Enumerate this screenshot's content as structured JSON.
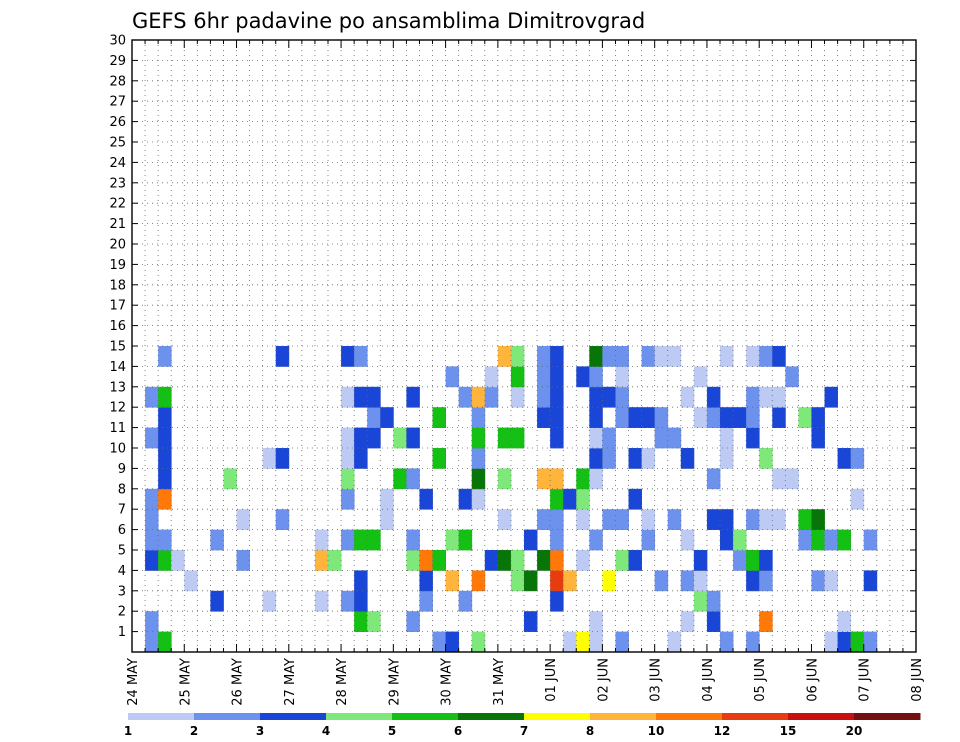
{
  "chart_data": {
    "type": "heatmap",
    "title": "GEFS 6hr padavine po ansamblima Dimitrovgrad",
    "xlabel": "",
    "ylabel": "",
    "x_tick_labels": [
      "24 MAY",
      "25 MAY",
      "26 MAY",
      "27 MAY",
      "28 MAY",
      "29 MAY",
      "30 MAY",
      "31 MAY",
      "01 JUN",
      "02 JUN",
      "03 JUN",
      "04 JUN",
      "05 JUN",
      "06 JUN",
      "07 JUN",
      "08 JUN"
    ],
    "y_tick_labels": [
      "1",
      "2",
      "3",
      "4",
      "5",
      "6",
      "7",
      "8",
      "9",
      "10",
      "11",
      "12",
      "13",
      "14",
      "15",
      "16",
      "17",
      "18",
      "19",
      "20",
      "21",
      "22",
      "23",
      "24",
      "25",
      "26",
      "27",
      "28",
      "29",
      "30"
    ],
    "ylim": [
      0,
      30
    ],
    "n_time_steps": 60,
    "grid": true,
    "legend": {
      "placement": "bottom",
      "labels": [
        "1",
        "2",
        "3",
        "4",
        "5",
        "6",
        "7",
        "8",
        "10",
        "12",
        "15",
        "20"
      ],
      "colors": [
        "#bccaf4",
        "#6c92ee",
        "#1a46d8",
        "#7fe87a",
        "#14c014",
        "#087508",
        "#ffff00",
        "#ffb43c",
        "#ff7808",
        "#e63c10",
        "#c81010",
        "#741010"
      ]
    },
    "series": [
      {
        "ensemble": 1,
        "cells": [
          [
            1,
            2
          ],
          [
            2,
            5
          ],
          [
            23,
            2
          ],
          [
            24,
            3
          ],
          [
            26,
            4
          ],
          [
            33,
            1
          ],
          [
            34,
            7
          ],
          [
            35,
            1
          ],
          [
            37,
            2
          ],
          [
            41,
            1
          ],
          [
            45,
            2
          ],
          [
            47,
            2
          ],
          [
            53,
            1
          ],
          [
            54,
            3
          ],
          [
            55,
            5
          ],
          [
            56,
            2
          ]
        ]
      },
      {
        "ensemble": 2,
        "cells": [
          [
            1,
            2
          ],
          [
            17,
            5
          ],
          [
            18,
            4
          ],
          [
            21,
            2
          ],
          [
            30,
            3
          ],
          [
            35,
            1
          ],
          [
            42,
            1
          ],
          [
            44,
            3
          ],
          [
            48,
            9
          ],
          [
            54,
            1
          ]
        ]
      },
      {
        "ensemble": 3,
        "cells": [
          [
            6,
            3
          ],
          [
            10,
            1
          ],
          [
            14,
            1
          ],
          [
            16,
            2
          ],
          [
            17,
            3
          ],
          [
            22,
            2
          ],
          [
            25,
            2
          ],
          [
            32,
            3
          ],
          [
            43,
            4
          ],
          [
            44,
            2
          ]
        ]
      },
      {
        "ensemble": 4,
        "cells": [
          [
            4,
            1
          ],
          [
            17,
            3
          ],
          [
            22,
            3
          ],
          [
            24,
            8
          ],
          [
            26,
            9
          ],
          [
            29,
            4
          ],
          [
            30,
            6
          ],
          [
            32,
            10
          ],
          [
            33,
            8
          ],
          [
            36,
            7
          ],
          [
            40,
            2
          ],
          [
            42,
            2
          ],
          [
            43,
            1
          ],
          [
            47,
            3
          ],
          [
            48,
            2
          ],
          [
            52,
            2
          ],
          [
            53,
            1
          ],
          [
            56,
            3
          ]
        ]
      },
      {
        "ensemble": 5,
        "cells": [
          [
            1,
            3
          ],
          [
            2,
            5
          ],
          [
            3,
            1
          ],
          [
            8,
            2
          ],
          [
            14,
            8
          ],
          [
            15,
            4
          ],
          [
            21,
            4
          ],
          [
            22,
            9
          ],
          [
            23,
            5
          ],
          [
            27,
            3
          ],
          [
            28,
            6
          ],
          [
            29,
            4
          ],
          [
            31,
            6
          ],
          [
            32,
            9
          ],
          [
            34,
            1
          ],
          [
            37,
            4
          ],
          [
            38,
            3
          ],
          [
            43,
            3
          ],
          [
            46,
            2
          ],
          [
            47,
            5
          ],
          [
            48,
            3
          ]
        ]
      },
      {
        "ensemble": 6,
        "cells": [
          [
            1,
            2
          ],
          [
            2,
            2
          ],
          [
            6,
            2
          ],
          [
            14,
            1
          ],
          [
            16,
            2
          ],
          [
            17,
            5
          ],
          [
            18,
            5
          ],
          [
            21,
            2
          ],
          [
            24,
            4
          ],
          [
            25,
            5
          ],
          [
            30,
            3
          ],
          [
            32,
            2
          ],
          [
            35,
            2
          ],
          [
            39,
            2
          ],
          [
            42,
            1
          ],
          [
            45,
            3
          ],
          [
            46,
            4
          ],
          [
            51,
            2
          ],
          [
            52,
            5
          ],
          [
            53,
            2
          ],
          [
            54,
            5
          ],
          [
            56,
            2
          ]
        ]
      },
      {
        "ensemble": 7,
        "cells": [
          [
            1,
            2
          ],
          [
            8,
            1
          ],
          [
            11,
            2
          ],
          [
            19,
            1
          ],
          [
            28,
            1
          ],
          [
            31,
            2
          ],
          [
            32,
            2
          ],
          [
            34,
            1
          ],
          [
            36,
            2
          ],
          [
            37,
            2
          ],
          [
            39,
            1
          ],
          [
            41,
            2
          ],
          [
            44,
            3
          ],
          [
            45,
            3
          ],
          [
            47,
            2
          ],
          [
            48,
            1
          ],
          [
            49,
            1
          ],
          [
            51,
            5
          ],
          [
            52,
            6
          ]
        ]
      },
      {
        "ensemble": 8,
        "cells": [
          [
            1,
            2
          ],
          [
            2,
            9
          ],
          [
            16,
            2
          ],
          [
            19,
            1
          ],
          [
            22,
            3
          ],
          [
            25,
            3
          ],
          [
            26,
            1
          ],
          [
            32,
            5
          ],
          [
            33,
            3
          ],
          [
            34,
            4
          ],
          [
            38,
            3
          ],
          [
            55,
            1
          ]
        ]
      },
      {
        "ensemble": 9,
        "cells": [
          [
            2,
            3
          ],
          [
            7,
            4
          ],
          [
            16,
            4
          ],
          [
            20,
            5
          ],
          [
            21,
            2
          ],
          [
            26,
            6
          ],
          [
            28,
            4
          ],
          [
            31,
            8
          ],
          [
            32,
            8
          ],
          [
            34,
            5
          ],
          [
            35,
            1
          ],
          [
            44,
            2
          ],
          [
            49,
            1
          ],
          [
            50,
            1
          ]
        ]
      },
      {
        "ensemble": 10,
        "cells": [
          [
            2,
            3
          ],
          [
            10,
            1
          ],
          [
            11,
            3
          ],
          [
            16,
            1
          ],
          [
            17,
            3
          ],
          [
            23,
            5
          ],
          [
            26,
            2
          ],
          [
            35,
            3
          ],
          [
            36,
            2
          ],
          [
            38,
            3
          ],
          [
            39,
            1
          ],
          [
            42,
            3
          ],
          [
            45,
            1
          ],
          [
            48,
            4
          ],
          [
            54,
            3
          ],
          [
            55,
            2
          ]
        ]
      },
      {
        "ensemble": 11,
        "cells": [
          [
            1,
            2
          ],
          [
            2,
            3
          ],
          [
            16,
            1
          ],
          [
            17,
            3
          ],
          [
            18,
            3
          ],
          [
            20,
            4
          ],
          [
            21,
            3
          ],
          [
            26,
            5
          ],
          [
            28,
            5
          ],
          [
            29,
            5
          ],
          [
            32,
            3
          ],
          [
            35,
            1
          ],
          [
            36,
            2
          ],
          [
            40,
            2
          ],
          [
            41,
            2
          ],
          [
            45,
            1
          ],
          [
            47,
            3
          ],
          [
            52,
            3
          ]
        ]
      },
      {
        "ensemble": 12,
        "cells": [
          [
            2,
            3
          ],
          [
            18,
            2
          ],
          [
            19,
            3
          ],
          [
            23,
            5
          ],
          [
            26,
            2
          ],
          [
            31,
            3
          ],
          [
            32,
            3
          ],
          [
            35,
            3
          ],
          [
            37,
            2
          ],
          [
            38,
            3
          ],
          [
            39,
            3
          ],
          [
            40,
            2
          ],
          [
            43,
            1
          ],
          [
            44,
            2
          ],
          [
            45,
            3
          ],
          [
            46,
            3
          ],
          [
            47,
            2
          ],
          [
            49,
            3
          ],
          [
            51,
            4
          ],
          [
            52,
            3
          ]
        ]
      },
      {
        "ensemble": 13,
        "cells": [
          [
            1,
            2
          ],
          [
            2,
            5
          ],
          [
            16,
            1
          ],
          [
            17,
            3
          ],
          [
            18,
            3
          ],
          [
            21,
            3
          ],
          [
            25,
            2
          ],
          [
            26,
            8
          ],
          [
            27,
            2
          ],
          [
            29,
            1
          ],
          [
            31,
            2
          ],
          [
            32,
            3
          ],
          [
            35,
            3
          ],
          [
            36,
            3
          ],
          [
            37,
            2
          ],
          [
            42,
            1
          ],
          [
            44,
            3
          ],
          [
            47,
            2
          ],
          [
            48,
            1
          ],
          [
            49,
            1
          ],
          [
            53,
            3
          ]
        ]
      },
      {
        "ensemble": 14,
        "cells": [
          [
            24,
            2
          ],
          [
            27,
            1
          ],
          [
            29,
            5
          ],
          [
            31,
            2
          ],
          [
            32,
            3
          ],
          [
            34,
            3
          ],
          [
            35,
            2
          ],
          [
            37,
            1
          ],
          [
            43,
            1
          ],
          [
            50,
            2
          ]
        ]
      },
      {
        "ensemble": 15,
        "cells": [
          [
            2,
            2
          ],
          [
            11,
            3
          ],
          [
            16,
            3
          ],
          [
            17,
            2
          ],
          [
            28,
            8
          ],
          [
            29,
            4
          ],
          [
            31,
            2
          ],
          [
            32,
            3
          ],
          [
            35,
            6
          ],
          [
            36,
            2
          ],
          [
            37,
            2
          ],
          [
            39,
            2
          ],
          [
            40,
            1
          ],
          [
            41,
            1
          ],
          [
            45,
            1
          ],
          [
            47,
            1
          ],
          [
            48,
            2
          ],
          [
            49,
            3
          ]
        ]
      }
    ]
  }
}
